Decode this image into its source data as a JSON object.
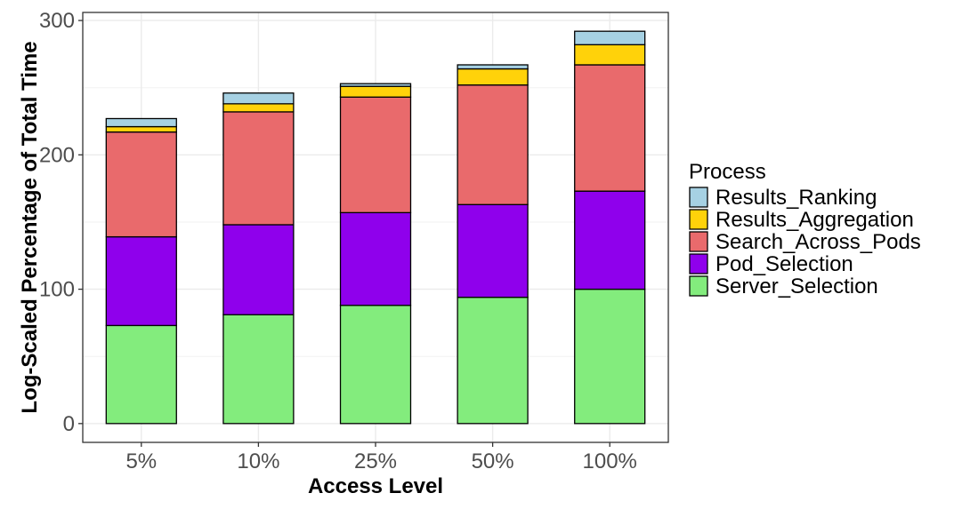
{
  "chart_data": {
    "type": "bar",
    "stacked": true,
    "title": "",
    "xlabel": "Access Level",
    "ylabel": "Log-Scaled Percentage of Total Time",
    "ylim": [
      -14,
      306
    ],
    "yticks": [
      0,
      100,
      200,
      300
    ],
    "categories": [
      "5%",
      "10%",
      "25%",
      "50%",
      "100%"
    ],
    "series": [
      {
        "name": "Server_Selection",
        "color": "#83EC7D",
        "values": [
          73,
          81,
          88,
          94,
          100
        ]
      },
      {
        "name": "Pod_Selection",
        "color": "#8F00EC",
        "values": [
          66,
          67,
          69,
          69,
          73
        ]
      },
      {
        "name": "Search_Across_Pods",
        "color": "#E96A6C",
        "values": [
          78,
          84,
          86,
          89,
          94
        ]
      },
      {
        "name": "Results_Aggregation",
        "color": "#FFD20A",
        "values": [
          4,
          6,
          8,
          12,
          15
        ]
      },
      {
        "name": "Results_Ranking",
        "color": "#A6D1E3",
        "values": [
          6,
          8,
          2,
          3,
          10
        ]
      }
    ],
    "grid": true,
    "legend": {
      "title": "Process",
      "position": "right",
      "order": [
        "Results_Ranking",
        "Results_Aggregation",
        "Search_Across_Pods",
        "Pod_Selection",
        "Server_Selection"
      ]
    }
  }
}
